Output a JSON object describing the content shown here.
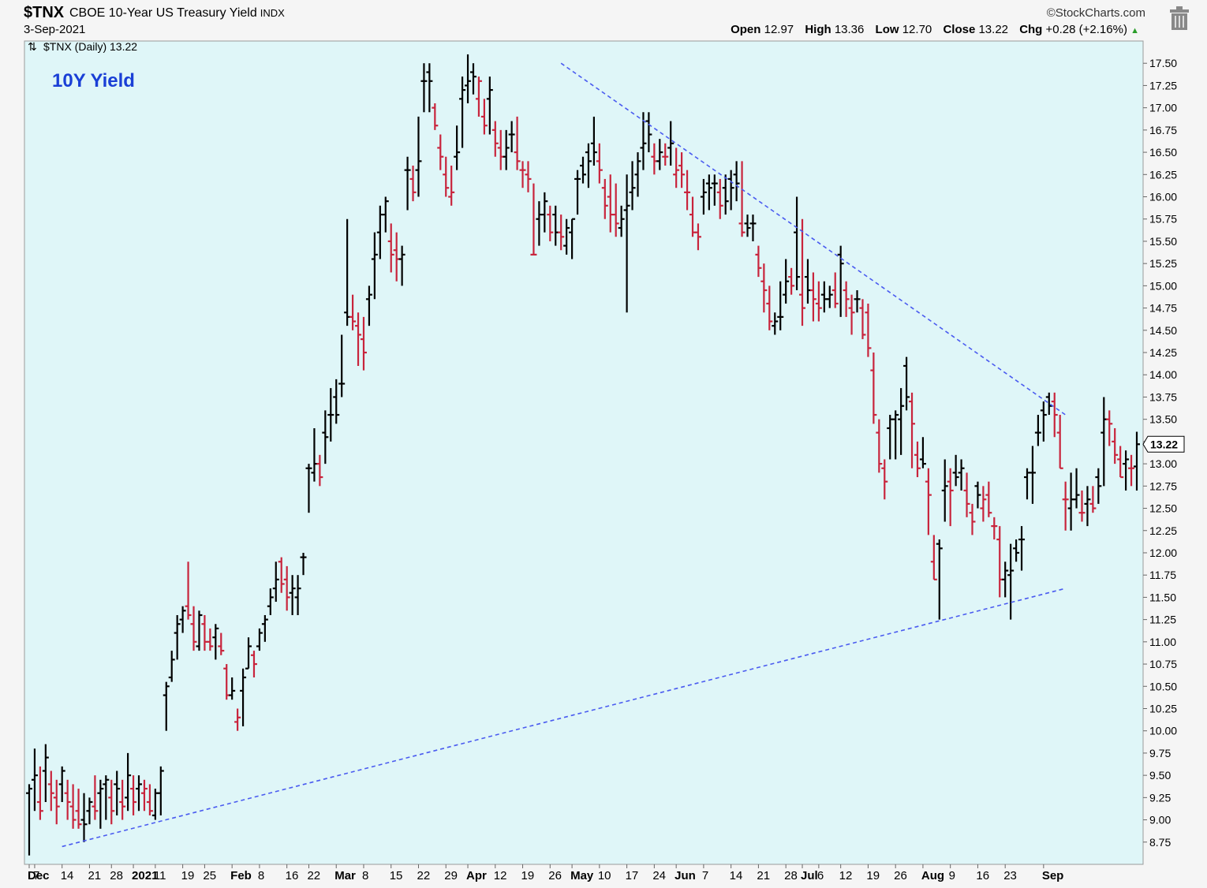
{
  "header": {
    "symbol": "$TNX",
    "name": "CBOE 10-Year US Treasury Yield",
    "exchange": "INDX",
    "date": "3-Sep-2021",
    "copyright": "©StockCharts.com",
    "ohlc": {
      "open_label": "Open",
      "open": "12.97",
      "high_label": "High",
      "high": "13.36",
      "low_label": "Low",
      "low": "12.70",
      "close_label": "Close",
      "close": "13.22",
      "chg_label": "Chg",
      "chg": "+0.28 (+2.16%)"
    },
    "trash_icon": "trash-icon"
  },
  "chart_data": {
    "type": "ohlc-bar",
    "legend": "$TNX (Daily) 13.22",
    "annotation": "10Y Yield",
    "annotation_color": "#1a3fd6",
    "last_value_label": "13.22",
    "up_color": "#000000",
    "down_color": "#c8243c",
    "trendline_color": "#4a5bf0",
    "background": "#dff6f8",
    "ylim": [
      8.5,
      17.75
    ],
    "y_ticks": [
      "8.75",
      "9.00",
      "9.25",
      "9.50",
      "9.75",
      "10.00",
      "10.25",
      "10.50",
      "10.75",
      "11.00",
      "11.25",
      "11.50",
      "11.75",
      "12.00",
      "12.25",
      "12.50",
      "12.75",
      "13.00",
      "13.25",
      "13.50",
      "13.75",
      "14.00",
      "14.25",
      "14.50",
      "14.75",
      "15.00",
      "15.25",
      "15.50",
      "15.75",
      "16.00",
      "16.25",
      "16.50",
      "16.75",
      "17.00",
      "17.25",
      "17.50"
    ],
    "x_ticks": [
      {
        "label": "Dec",
        "bold": true,
        "i": 0
      },
      {
        "label": "7",
        "i": 1
      },
      {
        "label": "14",
        "i": 6
      },
      {
        "label": "21",
        "i": 11
      },
      {
        "label": "28",
        "i": 15
      },
      {
        "label": "2021",
        "bold": true,
        "i": 19
      },
      {
        "label": "11",
        "i": 23
      },
      {
        "label": "19",
        "i": 28
      },
      {
        "label": "25",
        "i": 32
      },
      {
        "label": "Feb",
        "bold": true,
        "i": 37
      },
      {
        "label": "8",
        "i": 42
      },
      {
        "label": "16",
        "i": 47
      },
      {
        "label": "22",
        "i": 51
      },
      {
        "label": "Mar",
        "bold": true,
        "i": 56
      },
      {
        "label": "8",
        "i": 61
      },
      {
        "label": "15",
        "i": 66
      },
      {
        "label": "22",
        "i": 71
      },
      {
        "label": "29",
        "i": 76
      },
      {
        "label": "Apr",
        "bold": true,
        "i": 80
      },
      {
        "label": "12",
        "i": 85
      },
      {
        "label": "19",
        "i": 90
      },
      {
        "label": "26",
        "i": 95
      },
      {
        "label": "May",
        "bold": true,
        "i": 99
      },
      {
        "label": "10",
        "i": 104
      },
      {
        "label": "17",
        "i": 109
      },
      {
        "label": "24",
        "i": 114
      },
      {
        "label": "Jun",
        "bold": true,
        "i": 118
      },
      {
        "label": "7",
        "i": 123
      },
      {
        "label": "14",
        "i": 128
      },
      {
        "label": "21",
        "i": 133
      },
      {
        "label": "28",
        "i": 138
      },
      {
        "label": "Jul",
        "bold": true,
        "i": 141
      },
      {
        "label": "6",
        "i": 144
      },
      {
        "label": "12",
        "i": 148
      },
      {
        "label": "19",
        "i": 153
      },
      {
        "label": "26",
        "i": 158
      },
      {
        "label": "Aug",
        "bold": true,
        "i": 163
      },
      {
        "label": "9",
        "i": 168
      },
      {
        "label": "16",
        "i": 173
      },
      {
        "label": "23",
        "i": 178
      },
      {
        "label": "Sep",
        "bold": true,
        "i": 185
      }
    ],
    "ohlc": [
      [
        9.3,
        9.4,
        8.6,
        9.35
      ],
      [
        9.45,
        9.8,
        9.1,
        9.5
      ],
      [
        9.2,
        9.6,
        9.0,
        9.1
      ],
      [
        9.55,
        9.85,
        9.2,
        9.7
      ],
      [
        9.4,
        9.55,
        9.1,
        9.3
      ],
      [
        9.25,
        9.45,
        8.95,
        9.15
      ],
      [
        9.4,
        9.6,
        9.2,
        9.55
      ],
      [
        9.3,
        9.45,
        9.0,
        9.2
      ],
      [
        9.15,
        9.4,
        8.9,
        9.0
      ],
      [
        9.1,
        9.35,
        8.9,
        8.95
      ],
      [
        9.0,
        9.3,
        8.75,
        8.95
      ],
      [
        9.1,
        9.25,
        8.95,
        9.2
      ],
      [
        9.15,
        9.5,
        9.0,
        9.1
      ],
      [
        9.3,
        9.45,
        8.9,
        9.35
      ],
      [
        9.4,
        9.5,
        9.0,
        9.45
      ],
      [
        9.25,
        9.45,
        8.95,
        9.1
      ],
      [
        9.4,
        9.55,
        9.05,
        9.35
      ],
      [
        9.2,
        9.45,
        9.0,
        9.15
      ],
      [
        9.25,
        9.75,
        9.1,
        9.5
      ],
      [
        9.35,
        9.5,
        9.05,
        9.2
      ],
      [
        9.35,
        9.5,
        9.1,
        9.4
      ],
      [
        9.3,
        9.45,
        9.1,
        9.35
      ],
      [
        9.2,
        9.4,
        9.05,
        9.1
      ],
      [
        9.05,
        9.35,
        9.0,
        9.3
      ],
      [
        9.3,
        9.6,
        9.05,
        9.55
      ],
      [
        10.4,
        10.55,
        10.0,
        10.5
      ],
      [
        10.6,
        10.9,
        10.55,
        10.8
      ],
      [
        11.1,
        11.3,
        10.8,
        11.2
      ],
      [
        11.25,
        11.4,
        11.1,
        11.35
      ],
      [
        11.4,
        11.9,
        11.25,
        11.3
      ],
      [
        11.2,
        11.4,
        10.9,
        11.0
      ],
      [
        10.95,
        11.35,
        10.9,
        11.3
      ],
      [
        11.2,
        11.3,
        10.9,
        11.0
      ],
      [
        11.0,
        11.15,
        10.9,
        10.95
      ],
      [
        11.05,
        11.2,
        10.8,
        11.15
      ],
      [
        10.95,
        11.1,
        10.85,
        10.9
      ],
      [
        10.7,
        10.75,
        10.35,
        10.4
      ],
      [
        10.4,
        10.6,
        10.35,
        10.45
      ],
      [
        10.1,
        10.25,
        10.0,
        10.15
      ],
      [
        10.45,
        10.7,
        10.05,
        10.6
      ],
      [
        10.7,
        11.05,
        10.7,
        10.95
      ],
      [
        10.85,
        10.9,
        10.6,
        10.75
      ],
      [
        10.95,
        11.15,
        10.9,
        11.1
      ],
      [
        11.2,
        11.3,
        11.0,
        11.25
      ],
      [
        11.4,
        11.6,
        11.3,
        11.5
      ],
      [
        11.6,
        11.9,
        11.45,
        11.7
      ],
      [
        11.9,
        11.95,
        11.55,
        11.65
      ],
      [
        11.7,
        11.85,
        11.35,
        11.5
      ],
      [
        11.55,
        11.75,
        11.3,
        11.6
      ],
      [
        11.5,
        11.75,
        11.3,
        11.6
      ],
      [
        11.95,
        12.0,
        11.75,
        11.95
      ],
      [
        12.95,
        13.0,
        12.45,
        12.95
      ],
      [
        12.9,
        13.4,
        12.8,
        13.0
      ],
      [
        13.0,
        13.1,
        12.75,
        12.85
      ],
      [
        13.35,
        13.6,
        13.0,
        13.3
      ],
      [
        13.55,
        13.85,
        13.25,
        13.55
      ],
      [
        13.75,
        13.95,
        13.45,
        13.55
      ],
      [
        13.9,
        14.45,
        13.75,
        13.9
      ],
      [
        14.7,
        15.75,
        14.55,
        14.65
      ],
      [
        14.65,
        14.9,
        14.5,
        14.6
      ],
      [
        14.55,
        14.7,
        14.1,
        14.45
      ],
      [
        14.4,
        14.65,
        14.05,
        14.25
      ],
      [
        14.85,
        15.0,
        14.55,
        14.9
      ],
      [
        15.3,
        15.6,
        14.85,
        15.35
      ],
      [
        15.6,
        15.9,
        15.3,
        15.8
      ],
      [
        15.8,
        16.0,
        15.6,
        15.95
      ],
      [
        15.5,
        15.7,
        15.15,
        15.35
      ],
      [
        15.4,
        15.6,
        15.05,
        15.3
      ],
      [
        15.3,
        15.45,
        15.0,
        15.35
      ],
      [
        16.3,
        16.45,
        15.85,
        16.3
      ],
      [
        16.2,
        16.35,
        15.95,
        16.05
      ],
      [
        16.3,
        16.9,
        16.0,
        16.4
      ],
      [
        17.3,
        17.5,
        16.95,
        17.3
      ],
      [
        17.4,
        17.5,
        16.95,
        17.3
      ],
      [
        17.0,
        17.05,
        16.75,
        16.8
      ],
      [
        16.55,
        16.7,
        16.3,
        16.45
      ],
      [
        16.25,
        16.45,
        16.0,
        16.1
      ],
      [
        16.0,
        16.35,
        15.9,
        16.05
      ],
      [
        16.45,
        16.8,
        16.3,
        16.5
      ],
      [
        17.1,
        17.35,
        16.55,
        17.2
      ],
      [
        17.25,
        17.6,
        17.05,
        17.3
      ],
      [
        17.4,
        17.5,
        17.15,
        17.35
      ],
      [
        17.1,
        17.35,
        16.9,
        17.3
      ],
      [
        16.9,
        17.1,
        16.7,
        16.8
      ],
      [
        17.1,
        17.35,
        16.7,
        17.2
      ],
      [
        16.75,
        16.85,
        16.45,
        16.6
      ],
      [
        16.55,
        16.75,
        16.3,
        16.45
      ],
      [
        16.45,
        16.75,
        16.3,
        16.55
      ],
      [
        16.7,
        16.85,
        16.5,
        16.7
      ],
      [
        16.5,
        16.9,
        16.3,
        16.4
      ],
      [
        16.3,
        16.4,
        16.1,
        16.3
      ],
      [
        16.25,
        16.4,
        16.05,
        16.2
      ],
      [
        15.35,
        16.15,
        15.35,
        15.35
      ],
      [
        15.75,
        15.95,
        15.45,
        15.8
      ],
      [
        15.8,
        16.05,
        15.6,
        15.95
      ],
      [
        15.8,
        15.9,
        15.5,
        15.6
      ],
      [
        15.8,
        15.9,
        15.45,
        15.6
      ],
      [
        15.6,
        15.8,
        15.4,
        15.55
      ],
      [
        15.45,
        15.75,
        15.35,
        15.65
      ],
      [
        15.6,
        15.75,
        15.3,
        15.75
      ],
      [
        16.2,
        16.3,
        15.8,
        16.2
      ],
      [
        16.35,
        16.45,
        16.15,
        16.25
      ],
      [
        16.5,
        16.6,
        16.1,
        16.4
      ],
      [
        16.6,
        16.9,
        16.35,
        16.5
      ],
      [
        16.4,
        16.6,
        16.15,
        16.3
      ],
      [
        16.1,
        16.2,
        15.75,
        15.9
      ],
      [
        16.0,
        16.25,
        15.6,
        15.8
      ],
      [
        15.8,
        16.15,
        15.55,
        15.7
      ],
      [
        15.65,
        15.9,
        15.55,
        15.75
      ],
      [
        15.85,
        16.25,
        14.7,
        15.9
      ],
      [
        16.05,
        16.4,
        15.85,
        16.1
      ],
      [
        16.25,
        16.5,
        16.0,
        16.4
      ],
      [
        16.55,
        16.95,
        16.3,
        16.6
      ],
      [
        16.85,
        16.95,
        16.5,
        16.7
      ],
      [
        16.45,
        16.6,
        16.25,
        16.4
      ],
      [
        16.4,
        16.65,
        16.3,
        16.5
      ],
      [
        16.45,
        16.6,
        16.35,
        16.45
      ],
      [
        16.55,
        16.85,
        16.35,
        16.6
      ],
      [
        16.25,
        16.55,
        16.1,
        16.3
      ],
      [
        16.35,
        16.5,
        16.1,
        16.25
      ],
      [
        16.05,
        16.3,
        15.85,
        16.05
      ],
      [
        15.8,
        16.0,
        15.55,
        15.6
      ],
      [
        15.6,
        15.7,
        15.4,
        15.55
      ],
      [
        16.0,
        16.2,
        15.8,
        16.05
      ],
      [
        16.15,
        16.25,
        15.85,
        16.1
      ],
      [
        16.15,
        16.25,
        15.9,
        16.15
      ],
      [
        16.05,
        16.2,
        15.75,
        15.9
      ],
      [
        16.1,
        16.25,
        15.8,
        15.95
      ],
      [
        16.2,
        16.3,
        15.85,
        16.1
      ],
      [
        16.25,
        16.4,
        15.95,
        16.15
      ],
      [
        15.7,
        16.4,
        15.55,
        15.6
      ],
      [
        15.7,
        15.8,
        15.55,
        15.65
      ],
      [
        15.7,
        15.8,
        15.5,
        15.7
      ],
      [
        15.35,
        15.45,
        15.1,
        15.2
      ],
      [
        15.05,
        15.25,
        14.7,
        14.95
      ],
      [
        14.8,
        15.0,
        14.5,
        14.6
      ],
      [
        14.55,
        14.7,
        14.45,
        14.6
      ],
      [
        14.65,
        15.05,
        14.5,
        14.65
      ],
      [
        14.9,
        15.3,
        14.8,
        15.05
      ],
      [
        15.1,
        15.2,
        14.9,
        15.0
      ],
      [
        15.6,
        16.0,
        14.95,
        15.1
      ],
      [
        14.9,
        15.75,
        14.55,
        14.75
      ],
      [
        15.1,
        15.3,
        14.8,
        14.95
      ],
      [
        14.95,
        15.15,
        14.6,
        14.85
      ],
      [
        14.8,
        15.05,
        14.6,
        14.75
      ],
      [
        14.9,
        15.05,
        14.7,
        14.85
      ],
      [
        14.85,
        15.0,
        14.75,
        14.9
      ],
      [
        14.95,
        15.15,
        14.75,
        14.8
      ],
      [
        15.35,
        15.45,
        14.65,
        15.25
      ],
      [
        14.95,
        15.05,
        14.65,
        14.85
      ],
      [
        14.75,
        14.9,
        14.45,
        14.7
      ],
      [
        14.85,
        14.95,
        14.7,
        14.85
      ],
      [
        14.75,
        14.85,
        14.4,
        14.45
      ],
      [
        14.7,
        14.8,
        14.2,
        14.3
      ],
      [
        14.05,
        14.25,
        13.45,
        13.55
      ],
      [
        13.35,
        13.5,
        12.9,
        13.0
      ],
      [
        12.95,
        13.05,
        12.6,
        12.8
      ],
      [
        13.4,
        13.55,
        13.05,
        13.5
      ],
      [
        13.5,
        13.6,
        13.05,
        13.55
      ],
      [
        13.5,
        13.85,
        13.1,
        13.65
      ],
      [
        14.1,
        14.2,
        13.6,
        13.75
      ],
      [
        13.7,
        13.8,
        12.95,
        13.45
      ],
      [
        13.1,
        13.25,
        12.85,
        12.95
      ],
      [
        13.05,
        13.3,
        12.95,
        13.0
      ],
      [
        12.8,
        12.95,
        12.2,
        12.65
      ],
      [
        11.9,
        12.2,
        11.7,
        11.7
      ],
      [
        12.1,
        12.15,
        11.25,
        12.05
      ],
      [
        12.7,
        13.05,
        12.35,
        12.75
      ],
      [
        12.8,
        12.95,
        12.3,
        12.7
      ],
      [
        12.9,
        13.1,
        12.75,
        12.85
      ],
      [
        12.9,
        13.05,
        12.7,
        12.95
      ],
      [
        12.7,
        12.9,
        12.4,
        12.55
      ],
      [
        12.45,
        12.55,
        12.2,
        12.35
      ],
      [
        12.75,
        12.8,
        12.5,
        12.65
      ],
      [
        12.5,
        12.75,
        12.35,
        12.6
      ],
      [
        12.65,
        12.8,
        12.4,
        12.45
      ],
      [
        12.3,
        12.4,
        12.15,
        12.3
      ],
      [
        12.15,
        12.3,
        11.5,
        11.7
      ],
      [
        11.7,
        11.9,
        11.5,
        11.8
      ],
      [
        11.75,
        12.1,
        11.25,
        11.8
      ],
      [
        12.05,
        12.15,
        11.9,
        12.0
      ],
      [
        12.15,
        12.3,
        11.8,
        12.15
      ],
      [
        12.85,
        12.95,
        12.6,
        12.9
      ],
      [
        12.9,
        13.2,
        12.55,
        12.9
      ],
      [
        13.35,
        13.55,
        13.2,
        13.35
      ],
      [
        13.6,
        13.7,
        13.25,
        13.55
      ],
      [
        13.75,
        13.8,
        13.55,
        13.65
      ],
      [
        13.7,
        13.8,
        13.3,
        13.55
      ],
      [
        13.35,
        13.55,
        12.95,
        12.95
      ],
      [
        12.6,
        12.8,
        12.25,
        12.6
      ],
      [
        12.5,
        12.9,
        12.25,
        12.6
      ],
      [
        12.6,
        12.95,
        12.5,
        12.65
      ],
      [
        12.45,
        12.7,
        12.35,
        12.45
      ],
      [
        12.55,
        12.75,
        12.3,
        12.6
      ],
      [
        12.55,
        12.75,
        12.45,
        12.5
      ],
      [
        12.85,
        12.95,
        12.55,
        12.75
      ],
      [
        13.35,
        13.75,
        12.75,
        13.5
      ],
      [
        13.5,
        13.6,
        13.2,
        13.45
      ],
      [
        13.25,
        13.4,
        13.0,
        13.1
      ],
      [
        13.05,
        13.2,
        12.85,
        12.85
      ],
      [
        13.0,
        13.15,
        12.7,
        13.05
      ],
      [
        12.95,
        13.1,
        12.75,
        12.95
      ],
      [
        12.97,
        13.36,
        12.7,
        13.22
      ]
    ],
    "trendlines": [
      {
        "name": "support",
        "from": {
          "i": 6,
          "y": 8.7
        },
        "to": {
          "i": 189,
          "y": 11.6
        }
      },
      {
        "name": "resistance",
        "from": {
          "i": 97,
          "y": 17.5
        },
        "to": {
          "i": 189,
          "y": 13.55
        }
      }
    ]
  }
}
